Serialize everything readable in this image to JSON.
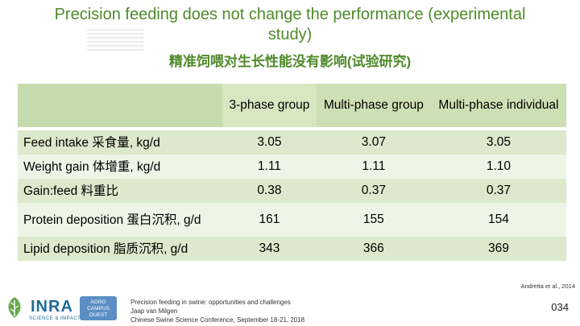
{
  "title": "Precision feeding does not change the performance (experimental study)",
  "subtitle": "精准饲喂对生长性能没有影响(试验研究)",
  "table": {
    "headers": [
      "",
      "3-phase group",
      "Multi-phase group",
      "Multi-phase individual"
    ],
    "rows": [
      {
        "label": "Feed intake 采食量, kg/d",
        "values": [
          "3.05",
          "3.07",
          "3.05"
        ]
      },
      {
        "label": "Weight gain 体增重, kg/d",
        "values": [
          "1.11",
          "1.11",
          "1.10"
        ]
      },
      {
        "label": "Gain:feed 料重比",
        "values": [
          "0.38",
          "0.37",
          "0.37"
        ]
      },
      {
        "label": "Protein deposition 蛋白沉积, g/d",
        "values": [
          "161",
          "155",
          "154"
        ]
      },
      {
        "label": "Lipid deposition 脂质沉积, g/d",
        "values": [
          "343",
          "366",
          "369"
        ]
      }
    ]
  },
  "reference": "Andretta et al., 2014",
  "footer": {
    "logo_text": "INRA",
    "logo_sub": "SCIENCE & IMPACT",
    "partner_logo": "AGRO CAMPUS OUEST",
    "credit_lines": [
      "Precision feeding in swine: opportunities and challenges",
      "Jaap van Milgen",
      "Chinese Swine Science Conference, September 18-21, 2018"
    ],
    "page_number": "034"
  },
  "colors": {
    "title": "#4f8a2a",
    "header_bg": "#cde0b5",
    "row_dark": "#dce9cc",
    "row_light": "#eef5e6"
  }
}
